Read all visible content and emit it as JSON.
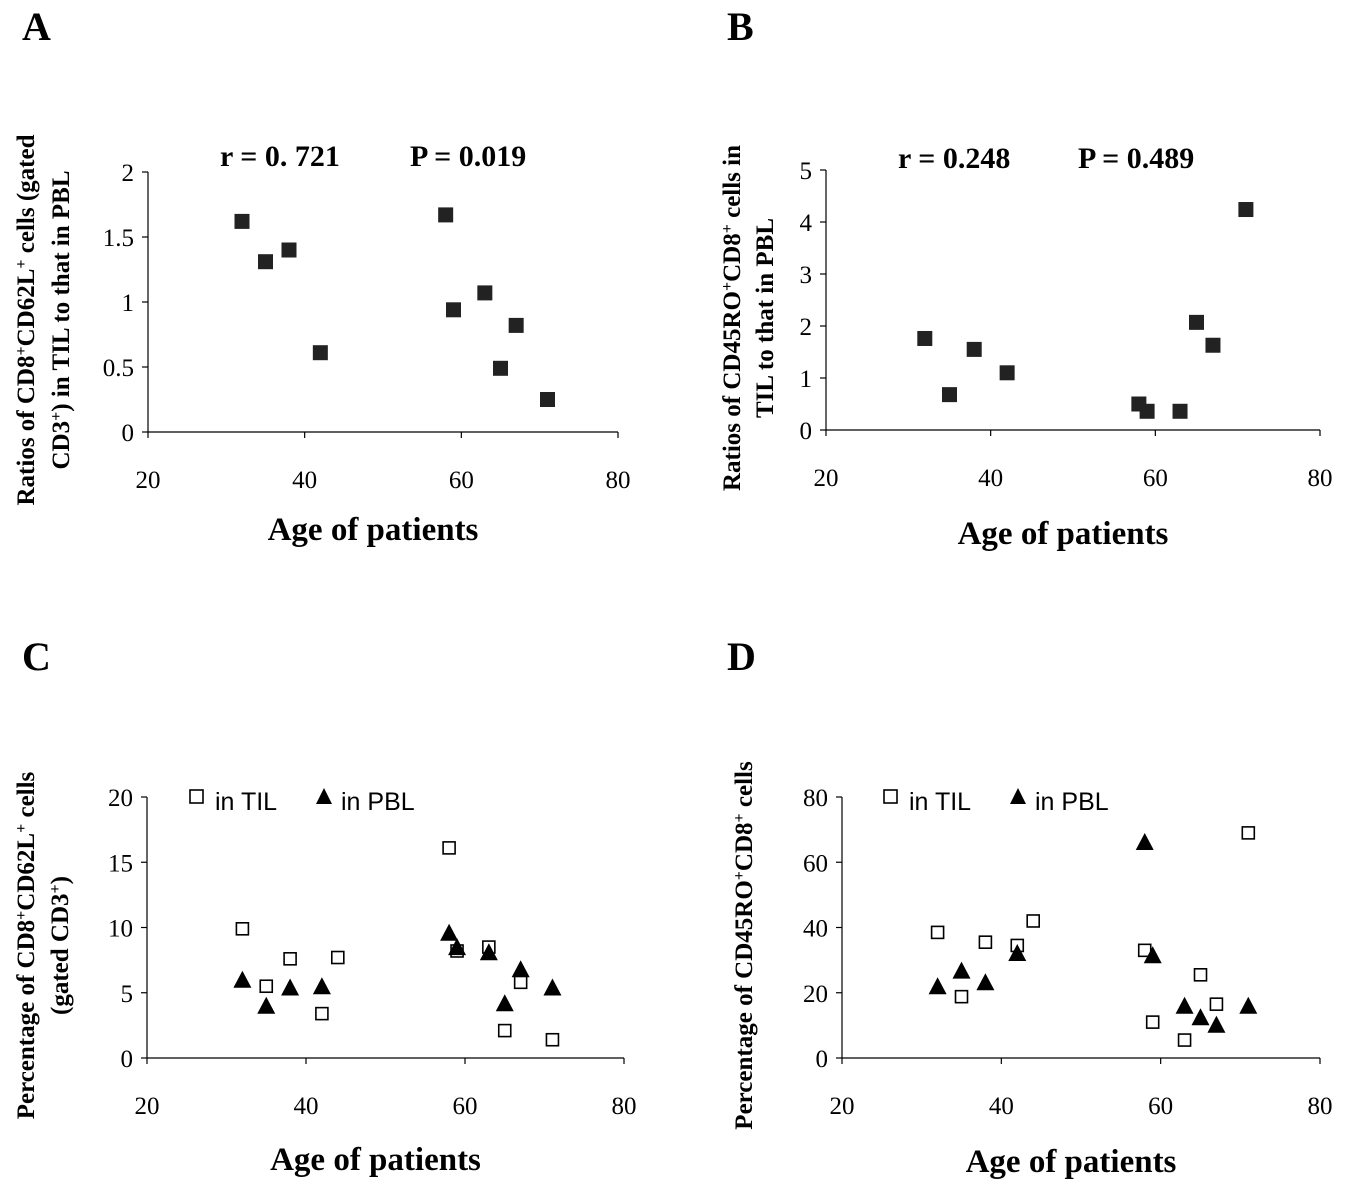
{
  "chart_data": [
    {
      "panel": "A",
      "type": "scatter",
      "xlabel": "Age of patients",
      "ylabel_lines": [
        [
          {
            "t": "Ratios of CD8"
          },
          {
            "t": "+",
            "sup": true
          },
          {
            "t": "CD62L"
          },
          {
            "t": "+",
            "sup": true
          },
          {
            "t": " cells (gated"
          }
        ],
        [
          {
            "t": "CD3"
          },
          {
            "t": "+",
            "sup": true
          },
          {
            "t": ") in TIL to that in PBL"
          }
        ]
      ],
      "annotations": [
        "r = 0. 721",
        "P = 0.019"
      ],
      "xlim": [
        20,
        80
      ],
      "ylim": [
        0,
        2
      ],
      "xticks": [
        "20",
        "40",
        "60",
        "80"
      ],
      "yticks": [
        "0",
        "0.5",
        "1",
        "1.5",
        "2"
      ],
      "series": [
        {
          "marker": "filled-square",
          "x": [
            32,
            35,
            38,
            42,
            58,
            59,
            63,
            65,
            67,
            71
          ],
          "y": [
            1.62,
            1.31,
            1.4,
            0.61,
            1.67,
            0.94,
            1.07,
            0.49,
            0.82,
            0.25
          ]
        }
      ]
    },
    {
      "panel": "B",
      "type": "scatter",
      "xlabel": "Age of patients",
      "ylabel_lines": [
        [
          {
            "t": "Ratios of CD45RO"
          },
          {
            "t": "+",
            "sup": true
          },
          {
            "t": "CD8"
          },
          {
            "t": "+",
            "sup": true
          },
          {
            "t": " cells in"
          }
        ],
        [
          {
            "t": "TIL to that in PBL"
          }
        ]
      ],
      "annotations": [
        "r = 0.248",
        "P = 0.489"
      ],
      "xlim": [
        20,
        80
      ],
      "ylim": [
        0,
        5
      ],
      "xticks": [
        "20",
        "40",
        "60",
        "80"
      ],
      "yticks": [
        "0",
        "1",
        "2",
        "3",
        "4",
        "5"
      ],
      "series": [
        {
          "marker": "filled-square",
          "x": [
            32,
            35,
            38,
            42,
            58,
            59,
            63,
            65,
            67,
            71
          ],
          "y": [
            1.76,
            0.68,
            1.55,
            1.1,
            0.5,
            0.36,
            0.36,
            2.07,
            1.63,
            4.24
          ]
        }
      ]
    },
    {
      "panel": "C",
      "type": "scatter",
      "xlabel": "Age of patients",
      "ylabel_lines": [
        [
          {
            "t": "Percentage of CD8"
          },
          {
            "t": "+",
            "sup": true
          },
          {
            "t": "CD62L"
          },
          {
            "t": "+",
            "sup": true
          },
          {
            "t": " cells"
          }
        ],
        [
          {
            "t": "(gated CD3"
          },
          {
            "t": "+",
            "sup": true
          },
          {
            "t": ")"
          }
        ]
      ],
      "annotations": [],
      "xlim": [
        20,
        80
      ],
      "ylim": [
        0,
        20
      ],
      "xticks": [
        "20",
        "40",
        "60",
        "80"
      ],
      "yticks": [
        "0",
        "5",
        "10",
        "15",
        "20"
      ],
      "legend": [
        "in TIL",
        "in PBL"
      ],
      "series": [
        {
          "name": "in TIL",
          "marker": "open-square",
          "x": [
            32,
            35,
            38,
            42,
            44,
            58,
            59,
            63,
            65,
            67,
            71
          ],
          "y": [
            9.9,
            5.5,
            7.6,
            3.4,
            7.7,
            16.1,
            8.2,
            8.5,
            2.1,
            5.8,
            1.4
          ]
        },
        {
          "name": "in PBL",
          "marker": "filled-triangle",
          "x": [
            32,
            35,
            38,
            42,
            58,
            59,
            63,
            65,
            67,
            71
          ],
          "y": [
            6.0,
            4.0,
            5.4,
            5.5,
            9.6,
            8.5,
            8.1,
            4.2,
            6.8,
            5.4
          ]
        }
      ]
    },
    {
      "panel": "D",
      "type": "scatter",
      "xlabel": "Age of patients",
      "ylabel_lines": [
        [
          {
            "t": "Percentage of CD45RO"
          },
          {
            "t": "+",
            "sup": true
          },
          {
            "t": "CD8"
          },
          {
            "t": "+",
            "sup": true
          },
          {
            "t": " cells"
          }
        ]
      ],
      "annotations": [],
      "xlim": [
        20,
        80
      ],
      "ylim": [
        0,
        80
      ],
      "xticks": [
        "20",
        "40",
        "60",
        "80"
      ],
      "yticks": [
        "0",
        "20",
        "40",
        "60",
        "80"
      ],
      "legend": [
        "in TIL",
        "in PBL"
      ],
      "series": [
        {
          "name": "in TIL",
          "marker": "open-square",
          "x": [
            32,
            35,
            38,
            42,
            44,
            58,
            59,
            63,
            65,
            67,
            71
          ],
          "y": [
            38.5,
            18.8,
            35.5,
            34.5,
            42.0,
            33.0,
            11.0,
            5.5,
            25.5,
            16.5,
            69.0
          ]
        },
        {
          "name": "in PBL",
          "marker": "filled-triangle",
          "x": [
            32,
            35,
            38,
            42,
            58,
            59,
            63,
            65,
            67,
            71
          ],
          "y": [
            22.0,
            26.8,
            23.2,
            32.2,
            66.2,
            31.5,
            16.0,
            12.5,
            10.2,
            16.0
          ]
        }
      ]
    }
  ]
}
